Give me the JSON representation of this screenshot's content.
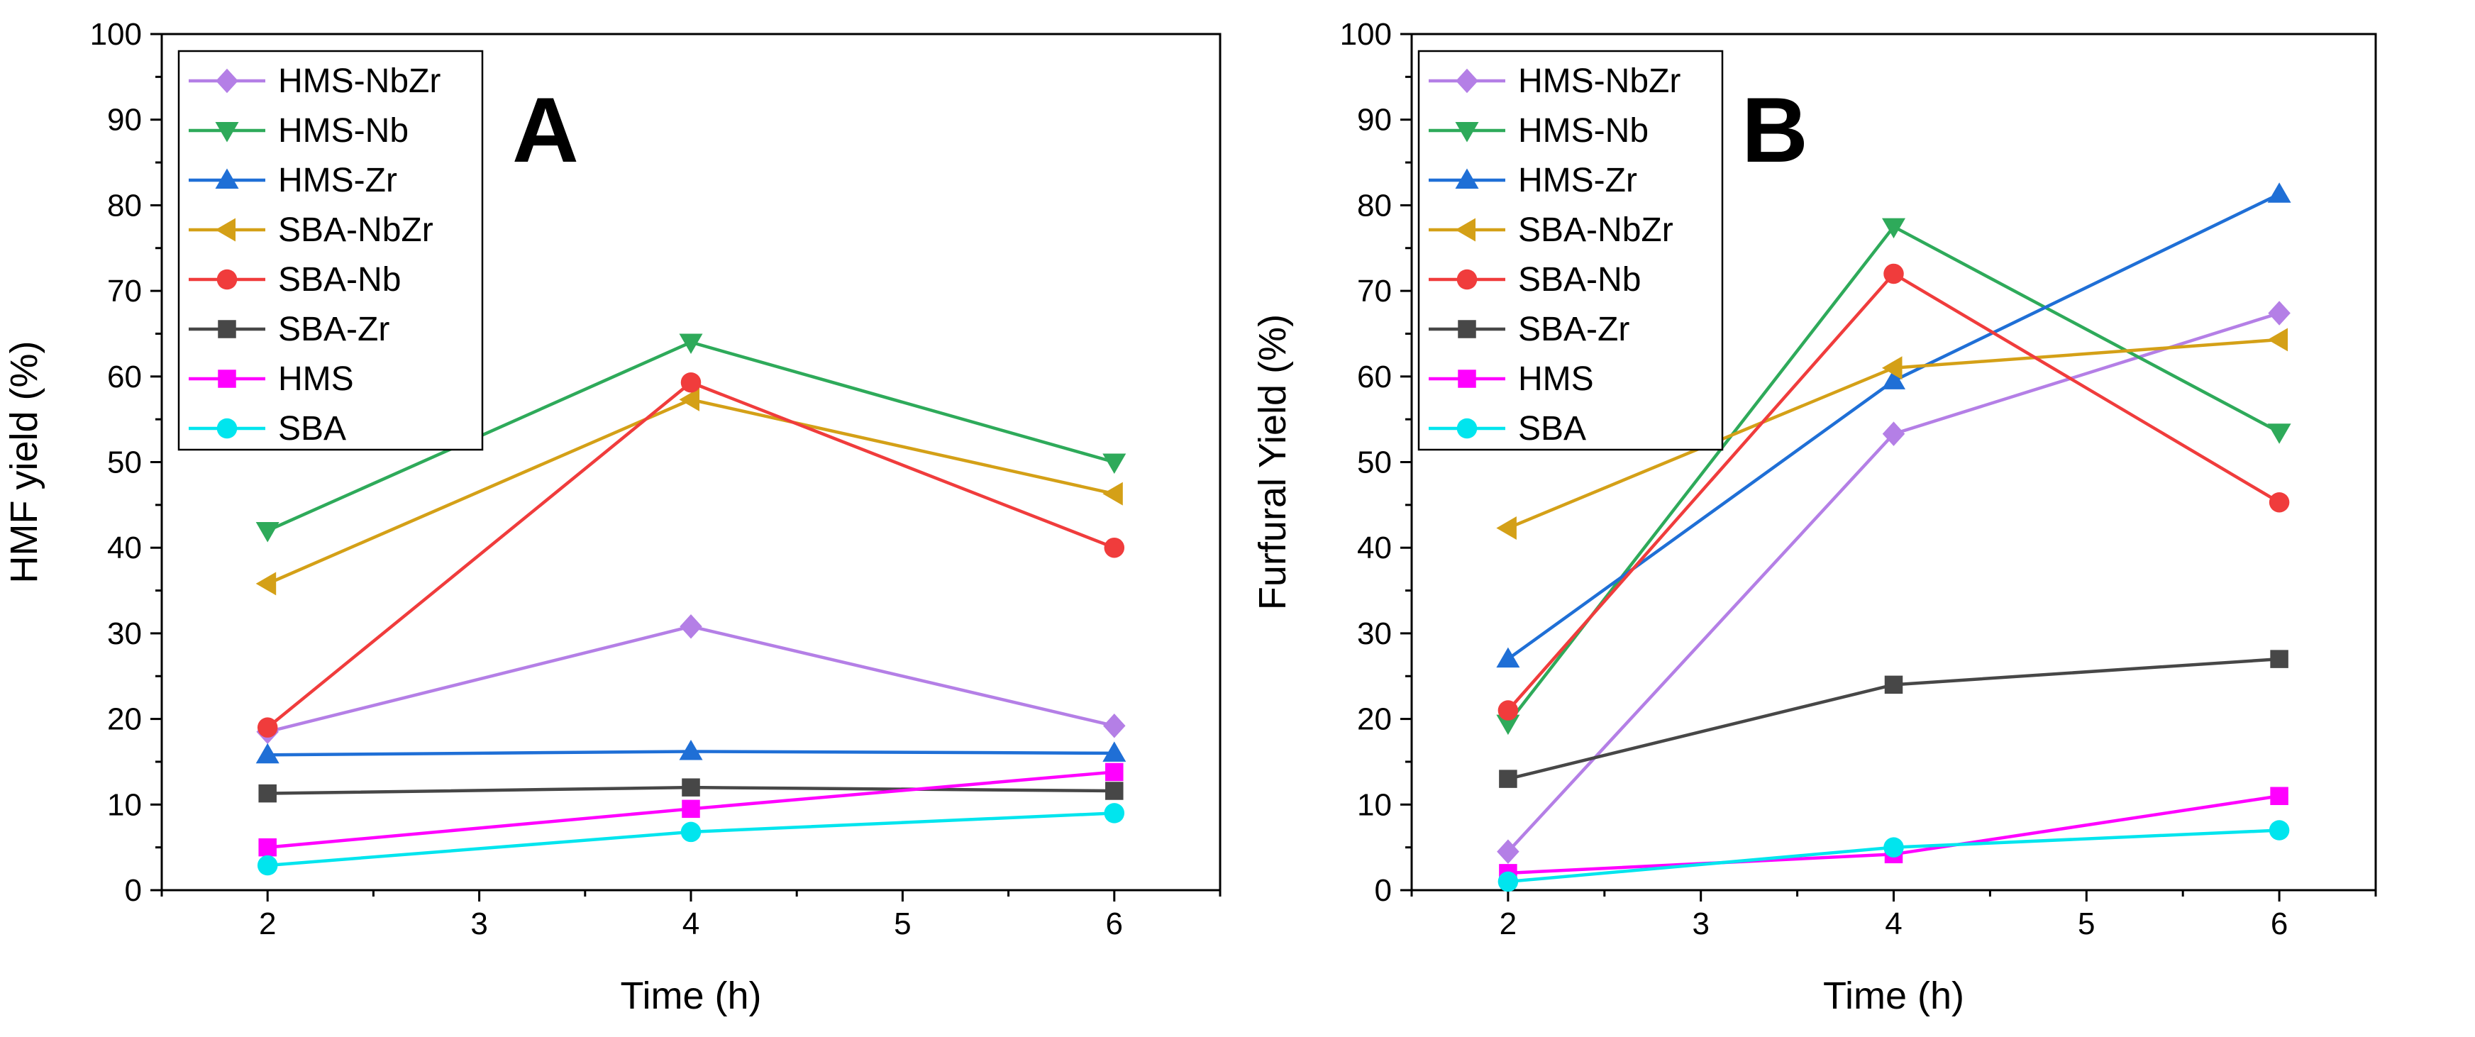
{
  "chart_data": [
    {
      "type": "line",
      "panel_label": "A",
      "xlabel": "Time (h)",
      "ylabel": "HMF yield (%)",
      "xlim": [
        1.5,
        6.5
      ],
      "ylim": [
        0,
        100
      ],
      "xticks": [
        2,
        3,
        4,
        5,
        6
      ],
      "yticks": [
        0,
        10,
        20,
        30,
        40,
        50,
        60,
        70,
        80,
        90,
        100
      ],
      "x": [
        2,
        4,
        6
      ],
      "legend_position": "top-left",
      "series": [
        {
          "name": "HMS-NbZr",
          "values": [
            18.5,
            30.8,
            19.2
          ],
          "color": "#b47fe6",
          "marker": "diamond"
        },
        {
          "name": "HMS-Nb",
          "values": [
            42,
            64,
            50
          ],
          "color": "#2eaa5a",
          "marker": "triangle-down"
        },
        {
          "name": "HMS-Zr",
          "values": [
            15.8,
            16.2,
            16
          ],
          "color": "#1f6fd6",
          "marker": "triangle-up"
        },
        {
          "name": "SBA-NbZr",
          "values": [
            35.8,
            57.3,
            46.3
          ],
          "color": "#d4a017",
          "marker": "triangle-left"
        },
        {
          "name": "SBA-Nb",
          "values": [
            19,
            59.3,
            40
          ],
          "color": "#f03c3c",
          "marker": "circle"
        },
        {
          "name": "SBA-Zr",
          "values": [
            11.3,
            12,
            11.6
          ],
          "color": "#474747",
          "marker": "square"
        },
        {
          "name": "HMS",
          "values": [
            5,
            9.5,
            13.8
          ],
          "color": "#ff00ff",
          "marker": "square"
        },
        {
          "name": "SBA",
          "values": [
            2.9,
            6.8,
            9
          ],
          "color": "#00e5ee",
          "marker": "circle"
        }
      ]
    },
    {
      "type": "line",
      "panel_label": "B",
      "xlabel": "Time (h)",
      "ylabel": "Furfural Yield (%)",
      "xlim": [
        1.5,
        6.5
      ],
      "ylim": [
        0,
        100
      ],
      "xticks": [
        2,
        3,
        4,
        5,
        6
      ],
      "yticks": [
        0,
        10,
        20,
        30,
        40,
        50,
        60,
        70,
        80,
        90,
        100
      ],
      "x": [
        2,
        4,
        6
      ],
      "legend_position": "top-left",
      "series": [
        {
          "name": "HMS-NbZr",
          "values": [
            4.5,
            53.3,
            67.4
          ],
          "color": "#b47fe6",
          "marker": "diamond"
        },
        {
          "name": "HMS-Nb",
          "values": [
            19.5,
            77.5,
            53.5
          ],
          "color": "#2eaa5a",
          "marker": "triangle-down"
        },
        {
          "name": "HMS-Zr",
          "values": [
            27,
            59.5,
            81.3
          ],
          "color": "#1f6fd6",
          "marker": "triangle-up"
        },
        {
          "name": "SBA-NbZr",
          "values": [
            42.3,
            61,
            64.3
          ],
          "color": "#d4a017",
          "marker": "triangle-left"
        },
        {
          "name": "SBA-Nb",
          "values": [
            21,
            72,
            45.3
          ],
          "color": "#f03c3c",
          "marker": "circle"
        },
        {
          "name": "SBA-Zr",
          "values": [
            13,
            24,
            27
          ],
          "color": "#474747",
          "marker": "square"
        },
        {
          "name": "HMS",
          "values": [
            2,
            4.2,
            11
          ],
          "color": "#ff00ff",
          "marker": "square"
        },
        {
          "name": "SBA",
          "values": [
            1,
            5,
            7
          ],
          "color": "#00e5ee",
          "marker": "circle"
        }
      ]
    }
  ]
}
